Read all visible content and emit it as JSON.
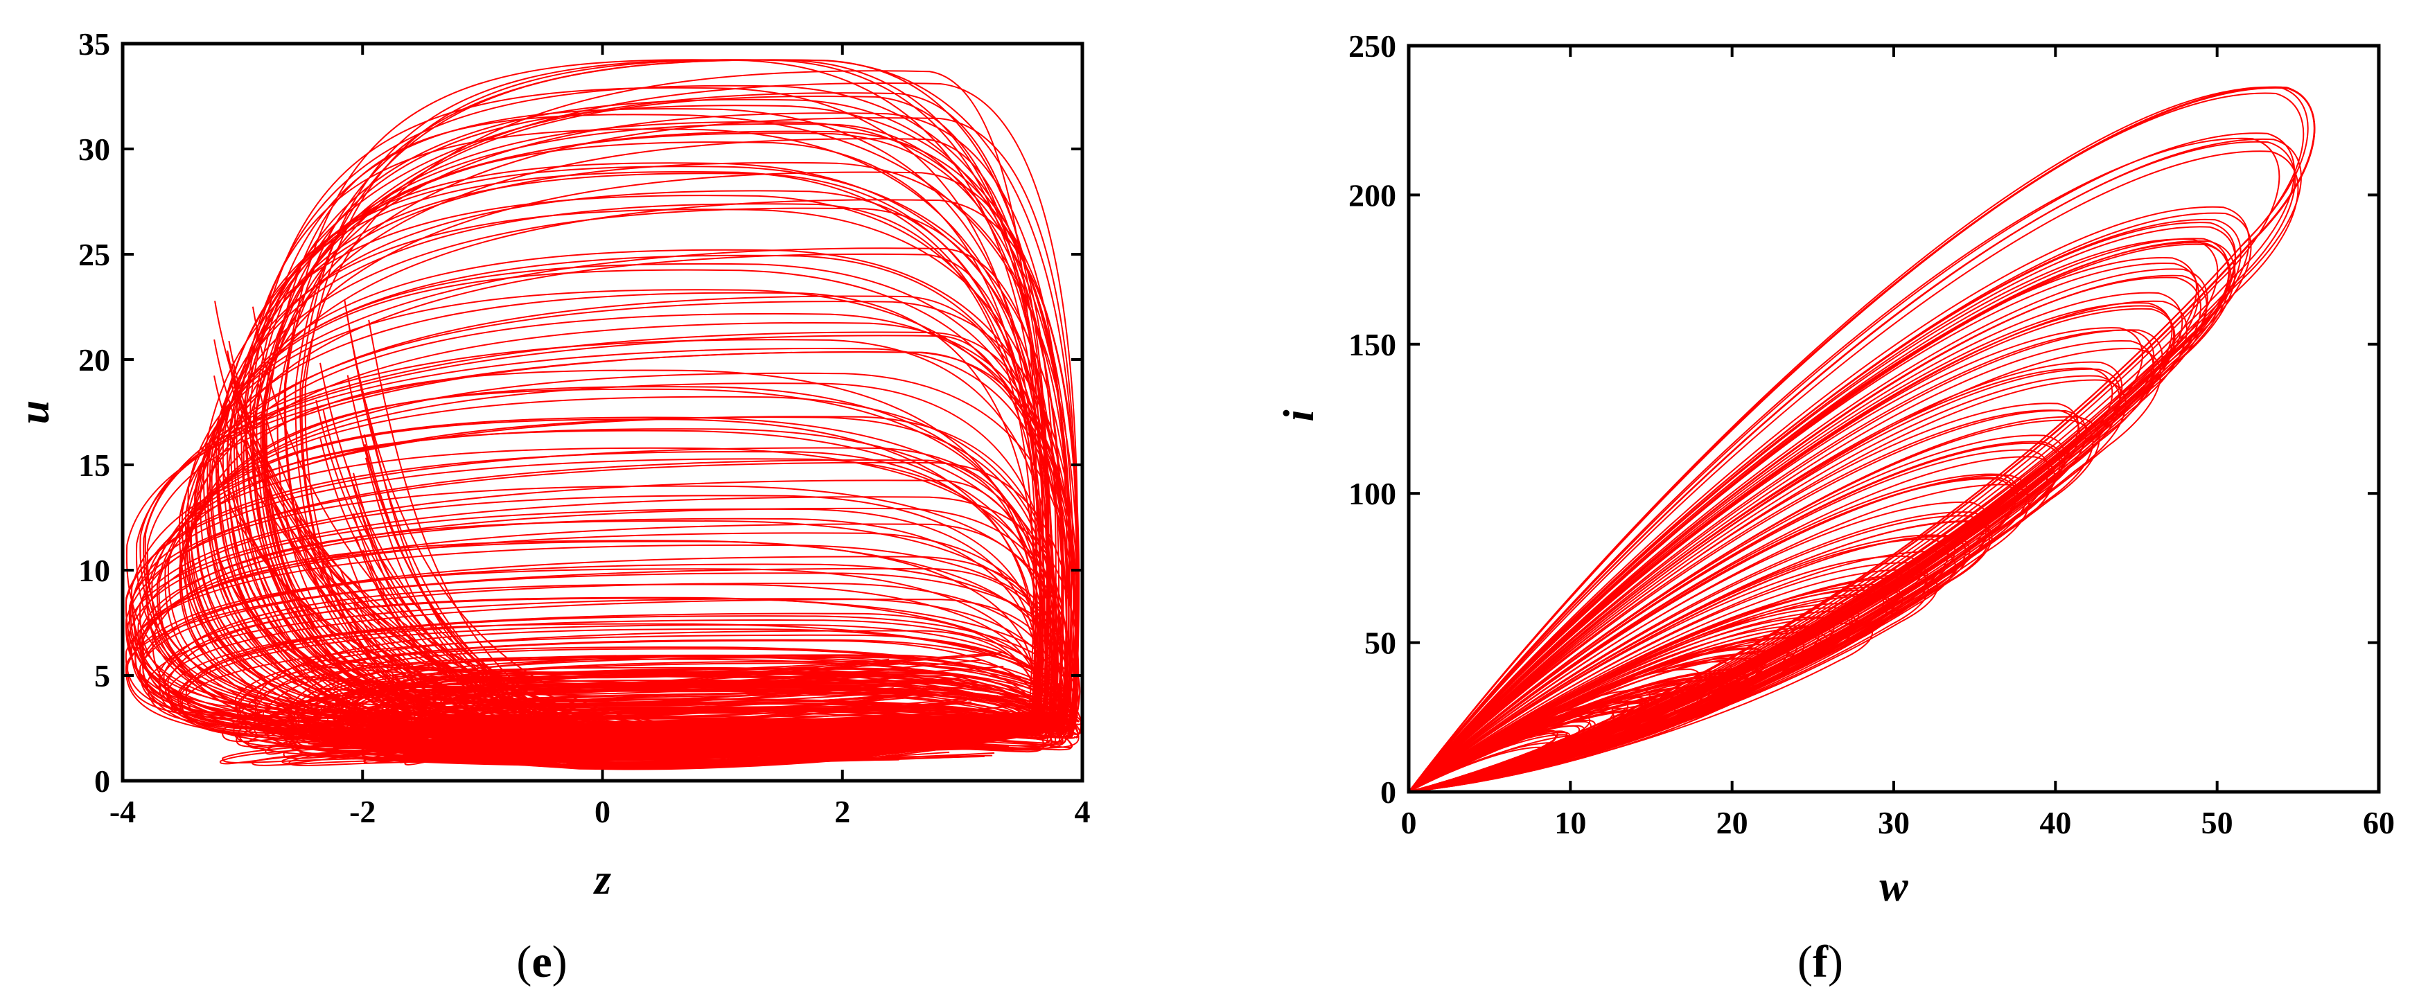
{
  "chart_data": [
    {
      "type": "line",
      "panel": "e",
      "caption_open": "(",
      "caption_letter": "e",
      "caption_close": ")",
      "xlabel": "z",
      "ylabel": "u",
      "xlim": [
        -4,
        4
      ],
      "ylim": [
        0,
        35
      ],
      "xticks": [
        -4,
        -2,
        0,
        2,
        4
      ],
      "yticks": [
        0,
        5,
        10,
        15,
        20,
        25,
        30,
        35
      ],
      "xtick_labels": [
        "-4",
        "-2",
        "0",
        "2",
        "4"
      ],
      "ytick_labels": [
        "0",
        "5",
        "10",
        "15",
        "20",
        "25",
        "30",
        "35"
      ],
      "grid": false,
      "series_color": "#ff0000",
      "description_points": {
        "x_range": [
          -3.95,
          3.95
        ],
        "y_range": [
          0.5,
          34.2
        ],
        "loops": [
          {
            "top": 34.2,
            "left": -2.6
          },
          {
            "top": 32.5,
            "left": -2.9
          },
          {
            "top": 31.8,
            "left": -2.8
          },
          {
            "top": 30.4,
            "left": -3.0
          },
          {
            "top": 29.0,
            "left": -3.1
          },
          {
            "top": 27.5,
            "left": -3.2
          },
          {
            "top": 25.0,
            "left": -3.4
          },
          {
            "top": 22.5,
            "left": -3.5
          },
          {
            "top": 21.0,
            "left": -3.9
          },
          {
            "top": 19.0,
            "left": -3.6
          },
          {
            "top": 17.0,
            "left": -3.8
          },
          {
            "top": 15.5,
            "left": -3.9
          },
          {
            "top": 13.5,
            "left": -3.95
          },
          {
            "top": 12.0,
            "left": -3.8
          },
          {
            "top": 10.5,
            "left": -3.95
          },
          {
            "top": 9.0,
            "left": -3.7
          },
          {
            "top": 7.5,
            "left": -3.5
          },
          {
            "top": 6.5,
            "left": -3.0
          },
          {
            "top": 5.5,
            "left": -2.5
          },
          {
            "top": 4.5,
            "left": -2.0
          },
          {
            "top": 3.8,
            "left": -1.5
          },
          {
            "top": 3.0,
            "left": -1.0
          }
        ]
      }
    },
    {
      "type": "line",
      "panel": "f",
      "caption_open": "(",
      "caption_letter": "f",
      "caption_close": ")",
      "xlabel": "w",
      "ylabel": "i",
      "xlim": [
        0,
        60
      ],
      "ylim": [
        0,
        250
      ],
      "xticks": [
        0,
        10,
        20,
        30,
        40,
        50,
        60
      ],
      "yticks": [
        0,
        50,
        100,
        150,
        200,
        250
      ],
      "xtick_labels": [
        "0",
        "10",
        "20",
        "30",
        "40",
        "50",
        "60"
      ],
      "ytick_labels": [
        "0",
        "50",
        "100",
        "150",
        "200",
        "250"
      ],
      "grid": false,
      "series_color": "#ff0000",
      "description_points": {
        "origin": [
          0,
          0
        ],
        "loops": [
          {
            "tip_w": 56.0,
            "tip_i": 235
          },
          {
            "tip_w": 54.5,
            "tip_i": 218
          },
          {
            "tip_w": 51.5,
            "tip_i": 192
          },
          {
            "tip_w": 50.5,
            "tip_i": 185
          },
          {
            "tip_w": 49.0,
            "tip_i": 175
          },
          {
            "tip_w": 47.5,
            "tip_i": 165
          },
          {
            "tip_w": 46.0,
            "tip_i": 152
          },
          {
            "tip_w": 44.0,
            "tip_i": 140
          },
          {
            "tip_w": 42.0,
            "tip_i": 128
          },
          {
            "tip_w": 40.0,
            "tip_i": 116
          },
          {
            "tip_w": 38.0,
            "tip_i": 104
          },
          {
            "tip_w": 36.0,
            "tip_i": 94
          },
          {
            "tip_w": 34.0,
            "tip_i": 84
          },
          {
            "tip_w": 32.0,
            "tip_i": 75
          },
          {
            "tip_w": 30.0,
            "tip_i": 68
          },
          {
            "tip_w": 28.0,
            "tip_i": 60
          },
          {
            "tip_w": 26.0,
            "tip_i": 55
          },
          {
            "tip_w": 24.0,
            "tip_i": 50
          },
          {
            "tip_w": 22.0,
            "tip_i": 45
          },
          {
            "tip_w": 20.0,
            "tip_i": 40
          }
        ]
      }
    }
  ]
}
